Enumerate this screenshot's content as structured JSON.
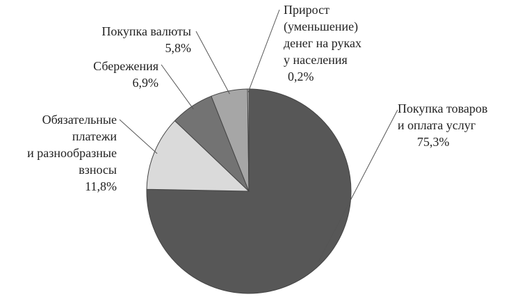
{
  "chart_data": {
    "type": "pie",
    "categories": [
      "Покупка товаров\nи оплата услуг",
      "Обязательные\nплатежи\nи разнообразные\nвзносы",
      "Сбережения",
      "Покупка валюты",
      "Прирост\n(уменьшение)\nденег на руках\nу населения"
    ],
    "values": [
      75.3,
      11.8,
      6.9,
      5.8,
      0.2
    ],
    "value_labels": [
      "75,3%",
      "11,8%",
      "6,9%",
      "5,8%",
      "0,2%"
    ],
    "colors": [
      "#575757",
      "#dadada",
      "#737373",
      "#a6a6a6",
      "#f2f2f2"
    ]
  }
}
